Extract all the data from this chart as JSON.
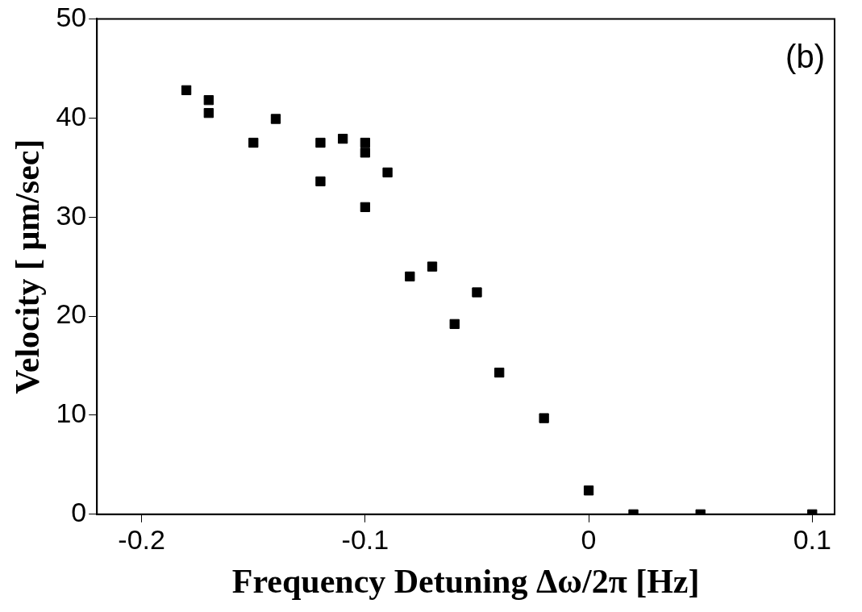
{
  "chart_data": {
    "type": "scatter",
    "xlabel": "Frequency Detuning Δω/2π [Hz]",
    "ylabel": "Velocity [ μm/sec]",
    "annotations": [
      "(b)"
    ],
    "x": [
      -0.18,
      -0.17,
      -0.17,
      -0.15,
      -0.14,
      -0.12,
      -0.12,
      -0.11,
      -0.1,
      -0.1,
      -0.1,
      -0.09,
      -0.08,
      -0.07,
      -0.06,
      -0.05,
      -0.04,
      -0.02,
      0,
      0.02,
      0.05,
      0.1
    ],
    "values": [
      42.8,
      41.8,
      40.5,
      37.5,
      39.9,
      37.5,
      33.6,
      37.9,
      37.5,
      36.5,
      31.0,
      34.5,
      24.0,
      25.0,
      19.2,
      22.4,
      14.3,
      9.7,
      2.4,
      0,
      0,
      0
    ],
    "color": "#000000",
    "marker": "square",
    "xlim": [
      -0.22,
      0.11
    ],
    "xticks": [
      -0.2,
      -0.1,
      0,
      0.1
    ],
    "ylim": [
      0,
      50
    ],
    "yticks": [
      0,
      10,
      20,
      30,
      40,
      50
    ]
  }
}
